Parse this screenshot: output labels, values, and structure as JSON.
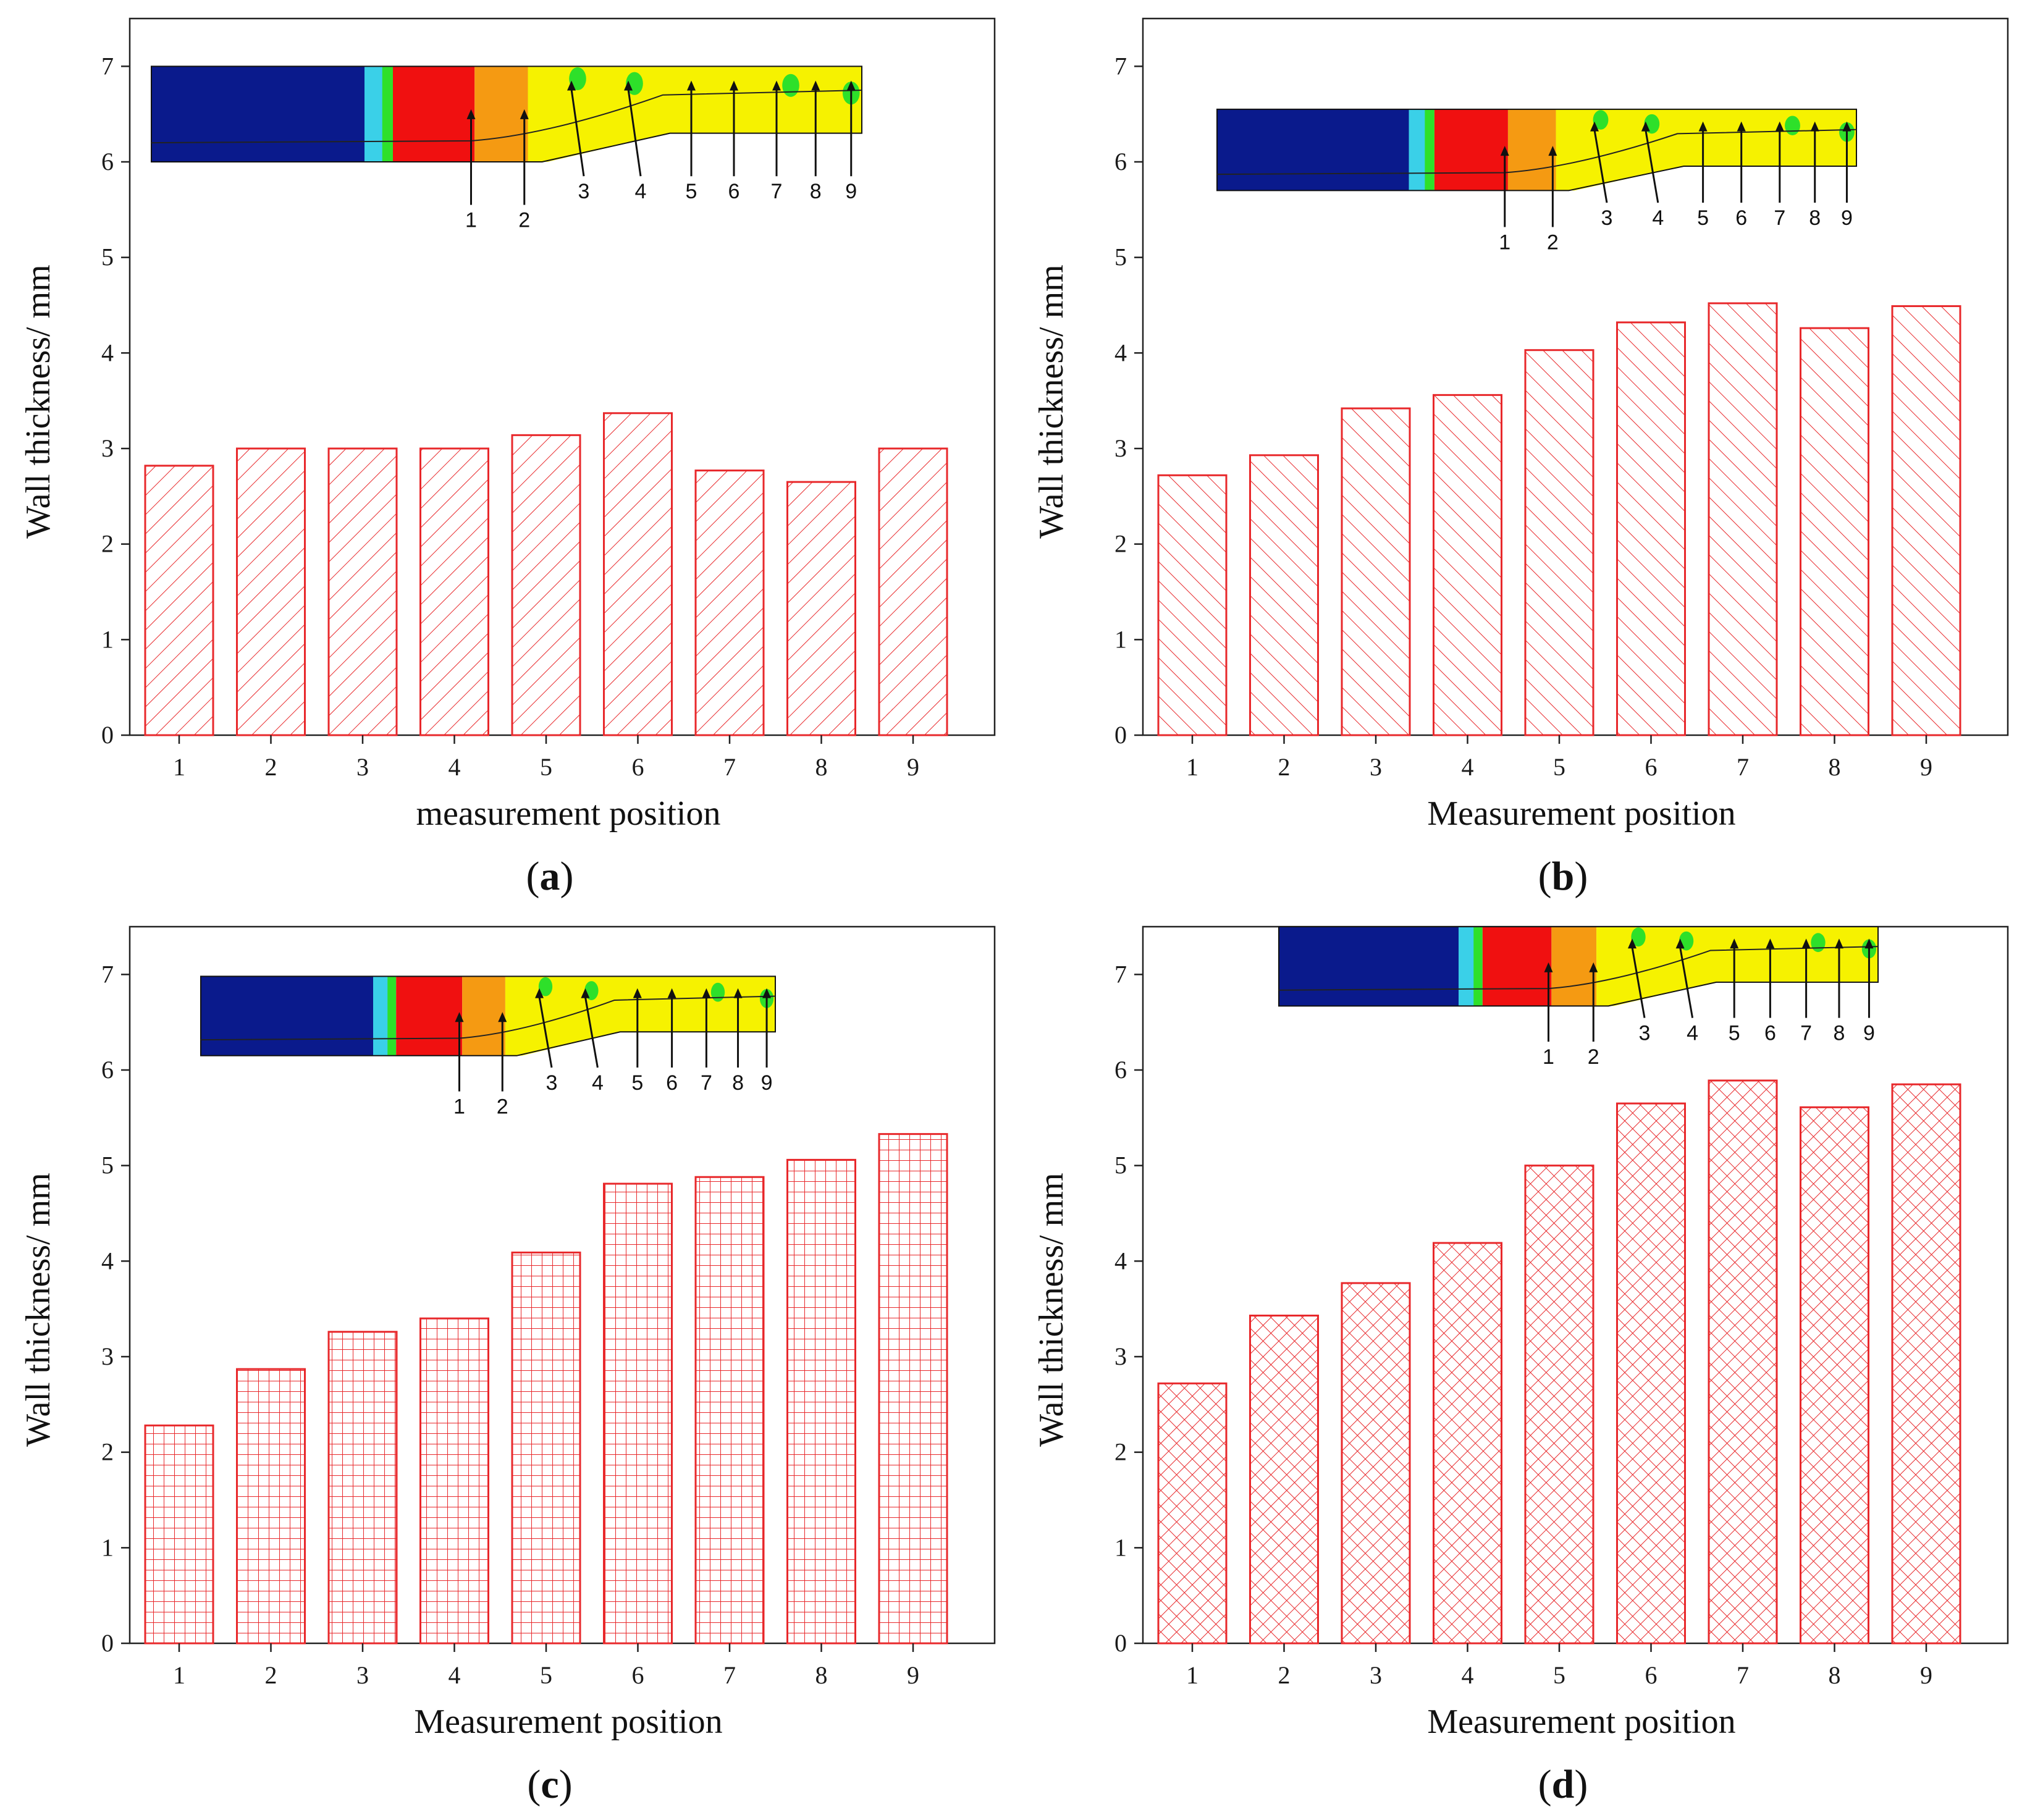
{
  "chart_data": [
    {
      "id": "a",
      "type": "bar",
      "panel_label": "a",
      "xlabel": "measurement position",
      "ylabel": "Wall thickness/ mm",
      "categories": [
        "1",
        "2",
        "3",
        "4",
        "5",
        "6",
        "7",
        "8",
        "9"
      ],
      "values": [
        2.82,
        3.0,
        3.0,
        3.0,
        3.14,
        3.37,
        2.77,
        2.65,
        3.0
      ],
      "ylim": [
        0,
        7.5
      ],
      "yticks": [
        "0",
        "1",
        "2",
        "3",
        "4",
        "5",
        "6",
        "7"
      ],
      "hatch": "backslash",
      "color": "#e8282b",
      "inset": {
        "y_top": 7.0,
        "y_bottom": 6.0,
        "markers": [
          "1",
          "2",
          "3",
          "4",
          "5",
          "6",
          "7",
          "8",
          "9"
        ]
      }
    },
    {
      "id": "b",
      "type": "bar",
      "panel_label": "b",
      "xlabel": "Measurement position",
      "ylabel": "Wall thickness/ mm",
      "categories": [
        "1",
        "2",
        "3",
        "4",
        "5",
        "6",
        "7",
        "8",
        "9"
      ],
      "values": [
        2.72,
        2.93,
        3.42,
        3.56,
        4.03,
        4.32,
        4.52,
        4.26,
        4.49
      ],
      "ylim": [
        0,
        7.5
      ],
      "yticks": [
        "0",
        "1",
        "2",
        "3",
        "4",
        "5",
        "6",
        "7"
      ],
      "hatch": "slash",
      "color": "#e8282b",
      "inset": {
        "y_top": 6.55,
        "y_bottom": 5.7,
        "markers": [
          "1",
          "2",
          "3",
          "4",
          "5",
          "6",
          "7",
          "8",
          "9"
        ]
      }
    },
    {
      "id": "c",
      "type": "bar",
      "panel_label": "c",
      "xlabel": "Measurement position",
      "ylabel": "Wall thickness/ mm",
      "categories": [
        "1",
        "2",
        "3",
        "4",
        "5",
        "6",
        "7",
        "8",
        "9"
      ],
      "values": [
        2.28,
        2.87,
        3.26,
        3.4,
        4.09,
        4.81,
        4.88,
        5.06,
        5.33
      ],
      "ylim": [
        0,
        7.5
      ],
      "yticks": [
        "0",
        "1",
        "2",
        "3",
        "4",
        "5",
        "6",
        "7"
      ],
      "hatch": "grid",
      "color": "#e8282b",
      "inset": {
        "y_top": 6.98,
        "y_bottom": 6.15,
        "markers": [
          "1",
          "2",
          "3",
          "4",
          "5",
          "6",
          "7",
          "8",
          "9"
        ]
      }
    },
    {
      "id": "d",
      "type": "bar",
      "panel_label": "d",
      "xlabel": "Measurement position",
      "ylabel": "Wall thickness/ mm",
      "categories": [
        "1",
        "2",
        "3",
        "4",
        "5",
        "6",
        "7",
        "8",
        "9"
      ],
      "values": [
        2.72,
        3.43,
        3.77,
        4.19,
        5.0,
        5.65,
        5.89,
        5.61,
        5.85
      ],
      "ylim": [
        0,
        7.5
      ],
      "yticks": [
        "0",
        "1",
        "2",
        "3",
        "4",
        "5",
        "6",
        "7"
      ],
      "hatch": "cross",
      "color": "#e8282b",
      "inset": {
        "y_top": 7.5,
        "y_bottom": 6.67,
        "markers": [
          "1",
          "2",
          "3",
          "4",
          "5",
          "6",
          "7",
          "8",
          "9"
        ]
      }
    }
  ],
  "colors": {
    "bar": "#e8282b",
    "fea_blue": "#0a1a8c",
    "fea_red": "#f01010",
    "fea_orange": "#f59a12",
    "fea_yellow": "#f6f200",
    "fea_green": "#2ee02a",
    "fea_cyan": "#3ad0e8"
  }
}
